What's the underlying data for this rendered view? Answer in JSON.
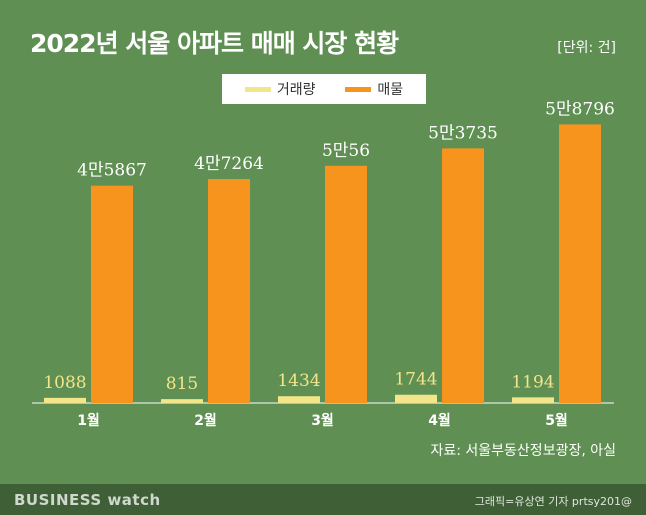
{
  "header": {
    "title": "2022년 서울 아파트 매매 시장 현황",
    "unit": "[단위: 건]"
  },
  "legend": {
    "items": [
      {
        "label": "거래량",
        "color": "#f3e58a"
      },
      {
        "label": "매물",
        "color": "#f7941d"
      }
    ]
  },
  "footer": {
    "source": "자료: 서울부동산정보광장, 아실",
    "brand": "BUSINESS watch",
    "credit": "그래픽=유상연 기자 prtsy201@"
  },
  "chart_data": {
    "type": "bar",
    "categories": [
      "1월",
      "2월",
      "3월",
      "4월",
      "5월"
    ],
    "series": [
      {
        "name": "거래량",
        "values": [
          1088,
          815,
          1434,
          1744,
          1194
        ],
        "labels": [
          "1088",
          "815",
          "1434",
          "1744",
          "1194"
        ],
        "color": "#f3e58a"
      },
      {
        "name": "매물",
        "values": [
          45867,
          47264,
          50056,
          53735,
          58796
        ],
        "labels": [
          "4만5867",
          "4만7264",
          "5만56",
          "5만3735",
          "5만8796"
        ],
        "color": "#f7941d"
      }
    ],
    "ylim": [
      0,
      65000
    ],
    "grid": false,
    "legend_position": "top-center"
  }
}
